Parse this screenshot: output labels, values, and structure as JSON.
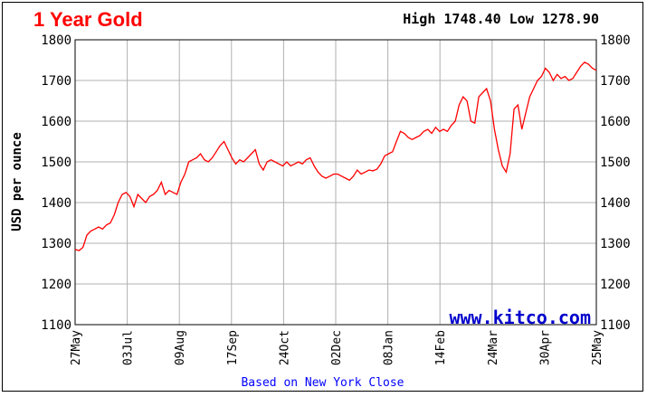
{
  "header": {
    "title": "1 Year Gold",
    "high_label": "High",
    "high_value": "1748.40",
    "low_label": "Low",
    "low_value": "1278.90"
  },
  "watermark": "www.kitco.com",
  "footnote": "Based on New York Close",
  "colors": {
    "title": "#ff0000",
    "line": "#ff0000",
    "grid": "#b0b0b0",
    "watermark": "#0000cc",
    "footnote": "#0000ff"
  },
  "chart_data": {
    "type": "line",
    "title": "1 Year Gold",
    "ylabel": "USD per ounce",
    "xlabel": "",
    "ylim": [
      1100,
      1800
    ],
    "yticks": [
      1100,
      1200,
      1300,
      1400,
      1500,
      1600,
      1700,
      1800
    ],
    "ytick_labels": [
      "1100",
      "1200",
      "1300",
      "1400",
      "1500",
      "1600",
      "1700",
      "1800"
    ],
    "xtick_labels": [
      "27May",
      "03Jul",
      "09Aug",
      "17Sep",
      "24Oct",
      "02Dec",
      "08Jan",
      "14Feb",
      "24Mar",
      "30Apr",
      "25May"
    ],
    "grid": true,
    "series": [
      {
        "values": [
          1285,
          1282,
          1290,
          1320,
          1330,
          1335,
          1340,
          1335,
          1345,
          1350,
          1370,
          1400,
          1420,
          1425,
          1415,
          1390,
          1420,
          1410,
          1400,
          1415,
          1420,
          1430,
          1450,
          1420,
          1430,
          1425,
          1420,
          1450,
          1470,
          1500,
          1505,
          1510,
          1520,
          1505,
          1500,
          1510,
          1525,
          1540,
          1550,
          1530,
          1510,
          1495,
          1505,
          1500,
          1510,
          1520,
          1530,
          1495,
          1480,
          1500,
          1505,
          1500,
          1495,
          1490,
          1500,
          1490,
          1495,
          1500,
          1495,
          1505,
          1510,
          1490,
          1475,
          1465,
          1460,
          1465,
          1470,
          1470,
          1465,
          1460,
          1455,
          1465,
          1480,
          1470,
          1475,
          1480,
          1478,
          1482,
          1495,
          1515,
          1520,
          1525,
          1550,
          1575,
          1570,
          1560,
          1555,
          1560,
          1565,
          1575,
          1580,
          1570,
          1585,
          1575,
          1580,
          1575,
          1590,
          1600,
          1640,
          1660,
          1650,
          1600,
          1595,
          1660,
          1670,
          1680,
          1650,
          1580,
          1530,
          1490,
          1475,
          1520,
          1630,
          1640,
          1580,
          1620,
          1660,
          1680,
          1700,
          1710,
          1730,
          1720,
          1700,
          1715,
          1705,
          1710,
          1700,
          1705,
          1720,
          1735,
          1745,
          1740,
          1730,
          1725
        ]
      }
    ]
  }
}
